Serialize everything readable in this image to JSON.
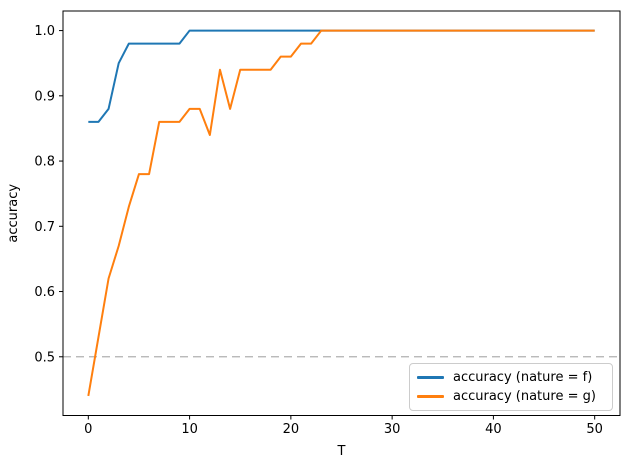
{
  "chart_data": {
    "type": "line",
    "title": "",
    "xlabel": "T",
    "ylabel": "accuracy",
    "xlim": [
      -2.5,
      52.5
    ],
    "ylim": [
      0.41,
      1.03
    ],
    "grid": false,
    "legend_position": "lower right",
    "x_ticks": {
      "values": [
        0,
        10,
        20,
        30,
        40,
        50
      ],
      "labels": [
        "0",
        "10",
        "20",
        "30",
        "40",
        "50"
      ]
    },
    "y_ticks": {
      "values": [
        0.5,
        0.6,
        0.7,
        0.8,
        0.9,
        1.0
      ],
      "labels": [
        "0.5",
        "0.6",
        "0.7",
        "0.8",
        "0.9",
        "1.0"
      ]
    },
    "reference_line": {
      "y": 0.5,
      "style": "dashed",
      "color": "#b0b0b0"
    },
    "x": [
      0,
      1,
      2,
      3,
      4,
      5,
      6,
      7,
      8,
      9,
      10,
      11,
      12,
      13,
      14,
      15,
      16,
      17,
      18,
      19,
      20,
      21,
      22,
      23,
      24,
      25,
      26,
      27,
      28,
      29,
      30,
      31,
      32,
      33,
      34,
      35,
      36,
      37,
      38,
      39,
      40,
      41,
      42,
      43,
      44,
      45,
      46,
      47,
      48,
      49,
      50
    ],
    "series": [
      {
        "name": "accuracy (nature = f)",
        "color": "#1f77b4",
        "values": [
          0.86,
          0.86,
          0.88,
          0.95,
          0.98,
          0.98,
          0.98,
          0.98,
          0.98,
          0.98,
          1.0,
          1.0,
          1.0,
          1.0,
          1.0,
          1.0,
          1.0,
          1.0,
          1.0,
          1.0,
          1.0,
          1.0,
          1.0,
          1.0,
          1.0,
          1.0,
          1.0,
          1.0,
          1.0,
          1.0,
          1.0,
          1.0,
          1.0,
          1.0,
          1.0,
          1.0,
          1.0,
          1.0,
          1.0,
          1.0,
          1.0,
          1.0,
          1.0,
          1.0,
          1.0,
          1.0,
          1.0,
          1.0,
          1.0,
          1.0,
          1.0
        ]
      },
      {
        "name": "accuracy (nature = g)",
        "color": "#ff7f0e",
        "values": [
          0.44,
          0.53,
          0.62,
          0.67,
          0.73,
          0.78,
          0.78,
          0.86,
          0.86,
          0.86,
          0.88,
          0.88,
          0.84,
          0.94,
          0.88,
          0.94,
          0.94,
          0.94,
          0.94,
          0.96,
          0.96,
          0.98,
          0.98,
          1.0,
          1.0,
          1.0,
          1.0,
          1.0,
          1.0,
          1.0,
          1.0,
          1.0,
          1.0,
          1.0,
          1.0,
          1.0,
          1.0,
          1.0,
          1.0,
          1.0,
          1.0,
          1.0,
          1.0,
          1.0,
          1.0,
          1.0,
          1.0,
          1.0,
          1.0,
          1.0,
          1.0
        ]
      }
    ],
    "colors": {
      "spine": "#000000",
      "tick_label": "#000000",
      "background": "#ffffff"
    }
  }
}
